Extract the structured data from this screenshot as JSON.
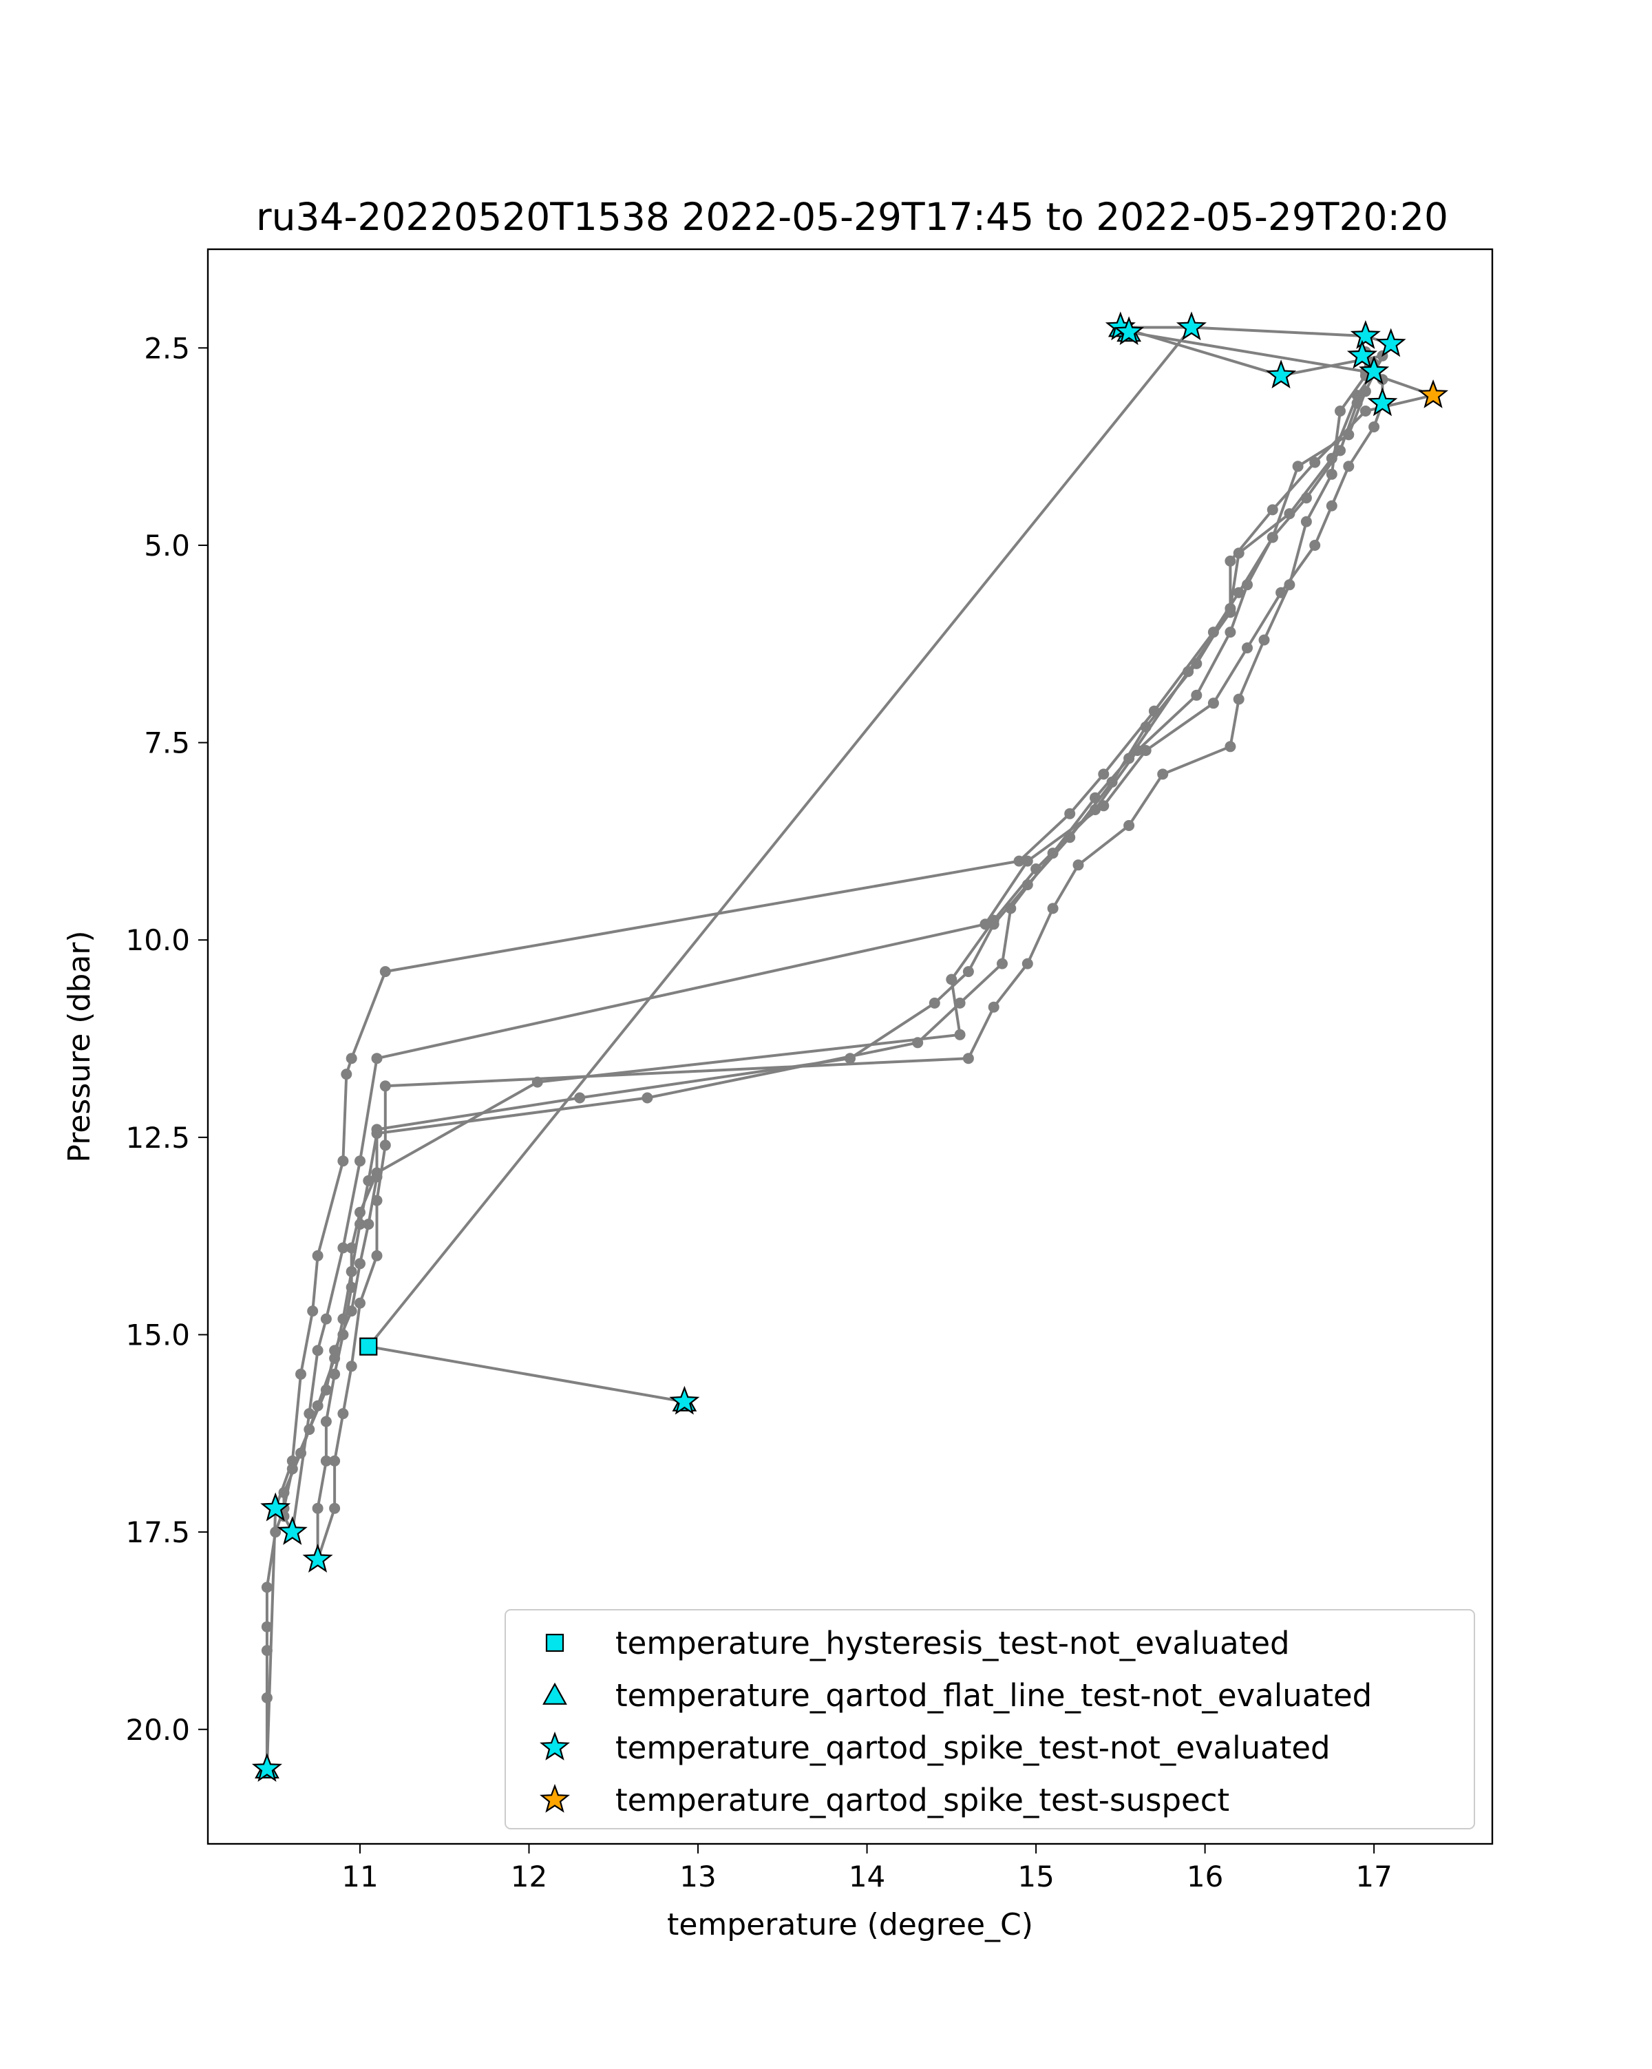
{
  "chart_data": {
    "type": "line",
    "title": "ru34-20220520T1538 2022-05-29T17:45 to 2022-05-29T20:20",
    "xlabel": "temperature (degree_C)",
    "ylabel": "Pressure (dbar)",
    "xlim": [
      10.1,
      17.7
    ],
    "ylim": [
      21.45,
      1.25
    ],
    "y_inverted": true,
    "grid": false,
    "legend_position": "lower-right",
    "xticks": [
      11,
      12,
      13,
      14,
      15,
      16,
      17
    ],
    "xtick_labels": [
      "11",
      "12",
      "13",
      "14",
      "15",
      "16",
      "17"
    ],
    "yticks": [
      2.5,
      5.0,
      7.5,
      10.0,
      12.5,
      15.0,
      17.5,
      20.0
    ],
    "ytick_labels": [
      "2.5",
      "5.0",
      "7.5",
      "10.0",
      "12.5",
      "15.0",
      "17.5",
      "20.0"
    ],
    "series": [
      {
        "color": "#808080",
        "marker": "circle",
        "points": [
          [
            15.5,
            2.24
          ],
          [
            15.92,
            2.24
          ],
          [
            16.95,
            2.35
          ],
          [
            17.1,
            2.45
          ],
          [
            17.0,
            2.8
          ],
          [
            16.9,
            3.1
          ],
          [
            16.75,
            3.9
          ],
          [
            16.5,
            4.6
          ],
          [
            16.2,
            5.1
          ],
          [
            16.15,
            5.8
          ],
          [
            15.95,
            6.5
          ],
          [
            15.65,
            7.3
          ],
          [
            15.45,
            8.0
          ],
          [
            15.2,
            8.7
          ],
          [
            14.95,
            9.3
          ],
          [
            14.75,
            9.8
          ],
          [
            14.6,
            10.4
          ],
          [
            14.4,
            10.8
          ],
          [
            13.9,
            11.5
          ],
          [
            12.3,
            12.0
          ],
          [
            11.1,
            12.4
          ],
          [
            11.1,
            13.0
          ],
          [
            11.05,
            13.6
          ],
          [
            11.0,
            14.1
          ],
          [
            10.95,
            14.7
          ],
          [
            10.85,
            15.2
          ],
          [
            10.8,
            15.7
          ],
          [
            10.7,
            16.2
          ],
          [
            10.6,
            16.7
          ],
          [
            10.55,
            17.2
          ],
          [
            10.5,
            17.5
          ],
          [
            10.45,
            18.2
          ],
          [
            10.45,
            18.7
          ],
          [
            10.45,
            19.0
          ],
          [
            10.45,
            19.6
          ],
          [
            10.45,
            20.5
          ]
        ]
      },
      {
        "color": "#808080",
        "marker": "circle",
        "points": [
          [
            10.45,
            20.5
          ],
          [
            10.5,
            17.2
          ],
          [
            10.6,
            16.6
          ],
          [
            10.65,
            15.5
          ],
          [
            10.72,
            14.7
          ],
          [
            10.75,
            14.0
          ],
          [
            10.9,
            12.8
          ],
          [
            10.92,
            11.7
          ],
          [
            10.95,
            11.5
          ],
          [
            11.15,
            10.4
          ],
          [
            14.9,
            9.0
          ],
          [
            15.2,
            8.4
          ],
          [
            15.4,
            7.9
          ],
          [
            15.7,
            7.1
          ],
          [
            16.05,
            6.1
          ],
          [
            16.2,
            5.6
          ],
          [
            16.4,
            4.9
          ],
          [
            16.55,
            4.0
          ],
          [
            16.85,
            3.6
          ],
          [
            16.95,
            3.05
          ],
          [
            17.05,
            2.6
          ],
          [
            16.45,
            2.85
          ],
          [
            15.5,
            2.24
          ]
        ]
      },
      {
        "color": "#808080",
        "marker": "circle",
        "points": [
          [
            15.55,
            2.3
          ],
          [
            16.95,
            2.8
          ],
          [
            17.35,
            3.1
          ],
          [
            16.95,
            3.3
          ],
          [
            16.65,
            3.95
          ],
          [
            16.4,
            4.55
          ],
          [
            16.15,
            5.2
          ],
          [
            16.15,
            5.85
          ],
          [
            15.9,
            6.6
          ],
          [
            15.55,
            7.7
          ],
          [
            15.35,
            8.2
          ],
          [
            15.1,
            8.9
          ],
          [
            14.85,
            9.6
          ],
          [
            14.8,
            10.3
          ],
          [
            14.55,
            10.8
          ],
          [
            14.3,
            11.3
          ],
          [
            12.7,
            12.0
          ],
          [
            11.1,
            12.45
          ],
          [
            11.05,
            13.05
          ],
          [
            11.0,
            13.6
          ],
          [
            10.95,
            14.2
          ],
          [
            10.9,
            14.8
          ],
          [
            10.85,
            15.3
          ],
          [
            10.75,
            15.9
          ],
          [
            10.65,
            16.5
          ],
          [
            10.55,
            17.0
          ],
          [
            10.55,
            17.3
          ],
          [
            10.6,
            17.5
          ]
        ]
      },
      {
        "color": "#808080",
        "marker": "circle",
        "points": [
          [
            10.6,
            17.5
          ],
          [
            10.7,
            16.0
          ],
          [
            10.75,
            15.2
          ],
          [
            10.8,
            14.8
          ],
          [
            10.9,
            13.9
          ],
          [
            11.0,
            12.8
          ],
          [
            11.1,
            11.5
          ],
          [
            14.7,
            9.8
          ],
          [
            14.95,
            9.0
          ],
          [
            15.4,
            8.3
          ],
          [
            15.65,
            7.6
          ],
          [
            16.05,
            7.0
          ],
          [
            16.25,
            6.3
          ],
          [
            16.45,
            5.6
          ],
          [
            16.65,
            5.0
          ],
          [
            16.75,
            4.5
          ],
          [
            16.85,
            4.0
          ],
          [
            17.0,
            3.5
          ],
          [
            17.05,
            3.2
          ],
          [
            17.05,
            2.9
          ],
          [
            17.0,
            2.7
          ]
        ]
      },
      {
        "color": "#808080",
        "marker": "circle",
        "points": [
          [
            17.0,
            2.7
          ],
          [
            16.9,
            3.2
          ],
          [
            16.8,
            3.8
          ],
          [
            16.6,
            4.4
          ],
          [
            16.4,
            4.9
          ],
          [
            16.25,
            5.5
          ],
          [
            16.15,
            6.1
          ],
          [
            15.95,
            6.9
          ],
          [
            15.6,
            7.6
          ],
          [
            15.35,
            8.35
          ],
          [
            15.0,
            9.1
          ],
          [
            14.75,
            9.75
          ],
          [
            14.5,
            10.5
          ],
          [
            14.55,
            11.2
          ],
          [
            12.05,
            11.8
          ],
          [
            11.1,
            12.95
          ],
          [
            11.0,
            13.45
          ],
          [
            10.95,
            13.9
          ],
          [
            10.95,
            14.4
          ],
          [
            10.9,
            15.0
          ],
          [
            10.85,
            15.5
          ],
          [
            10.8,
            16.1
          ],
          [
            10.8,
            16.6
          ],
          [
            10.75,
            17.2
          ],
          [
            10.75,
            17.85
          ]
        ]
      },
      {
        "color": "#808080",
        "marker": "circle",
        "points": [
          [
            10.75,
            17.85
          ],
          [
            10.85,
            17.2
          ],
          [
            10.85,
            16.6
          ],
          [
            10.9,
            16.0
          ],
          [
            10.95,
            15.4
          ],
          [
            11.0,
            14.6
          ],
          [
            11.1,
            14.0
          ],
          [
            11.1,
            13.3
          ],
          [
            11.15,
            12.6
          ],
          [
            11.15,
            11.85
          ],
          [
            14.6,
            11.5
          ],
          [
            14.75,
            10.85
          ],
          [
            14.95,
            10.3
          ],
          [
            15.1,
            9.6
          ],
          [
            15.25,
            9.05
          ],
          [
            15.55,
            8.55
          ],
          [
            15.75,
            7.9
          ],
          [
            16.15,
            7.55
          ],
          [
            16.2,
            6.95
          ],
          [
            16.35,
            6.2
          ],
          [
            16.5,
            5.5
          ],
          [
            16.6,
            4.7
          ],
          [
            16.75,
            4.1
          ],
          [
            16.8,
            3.3
          ],
          [
            16.95,
            2.85
          ],
          [
            16.95,
            2.55
          ]
        ]
      },
      {
        "color": "#808080",
        "marker": "circle",
        "points": [
          [
            15.92,
            2.24
          ],
          [
            11.05,
            15.15
          ],
          [
            12.92,
            15.85
          ]
        ]
      }
    ],
    "flagged_points": [
      {
        "category": "spike-not_evaluated",
        "x": 15.5,
        "y": 2.24
      },
      {
        "category": "spike-not_evaluated",
        "x": 15.55,
        "y": 2.3
      },
      {
        "category": "spike-not_evaluated",
        "x": 15.92,
        "y": 2.24
      },
      {
        "category": "spike-not_evaluated",
        "x": 16.95,
        "y": 2.35
      },
      {
        "category": "spike-not_evaluated",
        "x": 17.1,
        "y": 2.45
      },
      {
        "category": "spike-not_evaluated",
        "x": 16.93,
        "y": 2.6
      },
      {
        "category": "spike-not_evaluated",
        "x": 17.0,
        "y": 2.8
      },
      {
        "category": "spike-not_evaluated",
        "x": 17.05,
        "y": 3.2
      },
      {
        "category": "spike-not_evaluated",
        "x": 16.45,
        "y": 2.85
      },
      {
        "category": "spike-suspect",
        "x": 17.35,
        "y": 3.1
      },
      {
        "category": "hysteresis-not_evaluated",
        "x": 11.05,
        "y": 15.15
      },
      {
        "category": "spike-not_evaluated",
        "x": 12.92,
        "y": 15.85
      },
      {
        "category": "flat_line-not_evaluated",
        "x": 12.92,
        "y": 15.85
      },
      {
        "category": "spike-not_evaluated",
        "x": 10.5,
        "y": 17.2
      },
      {
        "category": "spike-not_evaluated",
        "x": 10.6,
        "y": 17.5
      },
      {
        "category": "spike-not_evaluated",
        "x": 10.75,
        "y": 17.85
      },
      {
        "category": "spike-not_evaluated",
        "x": 10.45,
        "y": 20.5
      },
      {
        "category": "flat_line-not_evaluated",
        "x": 10.45,
        "y": 20.5
      },
      {
        "category": "flat_line-not_evaluated",
        "x": 15.55,
        "y": 2.3
      },
      {
        "category": "flat_line-not_evaluated",
        "x": 15.5,
        "y": 2.24
      }
    ],
    "legend": [
      {
        "label": "temperature_hysteresis_test-not_evaluated",
        "marker": "square",
        "color": "#00e5ee"
      },
      {
        "label": "temperature_qartod_flat_line_test-not_evaluated",
        "marker": "triangle",
        "color": "#00e5ee"
      },
      {
        "label": "temperature_qartod_spike_test-not_evaluated",
        "marker": "star",
        "color": "#00e5ee"
      },
      {
        "label": "temperature_qartod_spike_test-suspect",
        "marker": "star",
        "color": "#ffa500"
      }
    ],
    "marker_categories": {
      "hysteresis-not_evaluated": {
        "marker": "square",
        "color": "#00e5ee"
      },
      "flat_line-not_evaluated": {
        "marker": "triangle",
        "color": "#00e5ee"
      },
      "spike-not_evaluated": {
        "marker": "star",
        "color": "#00e5ee"
      },
      "spike-suspect": {
        "marker": "star",
        "color": "#ffa500"
      }
    }
  }
}
